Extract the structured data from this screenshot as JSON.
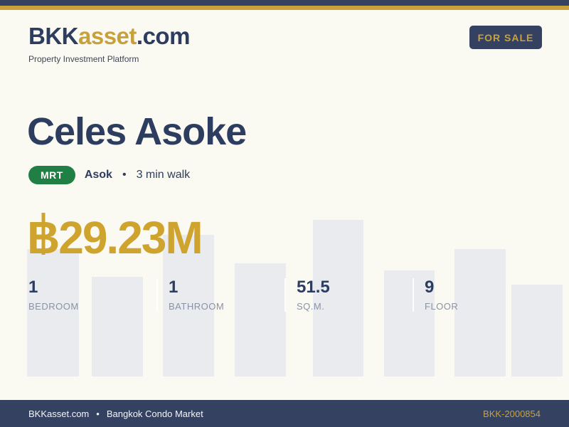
{
  "theme": {
    "navy": "#354161",
    "text_navy": "#2D3D5F",
    "gold": "#C7A23B",
    "price_gold": "#CEA42F",
    "cream": "#FAF9F2",
    "bar_gray": "#E9EBEE",
    "label_gray": "#8A92A3",
    "green": "#1F7F44",
    "tagline_gray": "#3F4757",
    "footer_text": "#F4F5F7"
  },
  "header": {
    "logo": {
      "part1": "BKK",
      "part2": "asset",
      "part3": ".com"
    },
    "tagline": "Property Investment Platform",
    "badge": "FOR SALE"
  },
  "listing": {
    "title": "Celes Asoke",
    "transit": {
      "badge": "MRT",
      "station": "Asok",
      "bullet": "•",
      "walk": "3 min walk"
    },
    "price": "฿29.23M",
    "price_parts": {
      "currency_base": "B",
      "amount": "29.23M"
    },
    "stats": [
      {
        "value": "1",
        "label": "BEDROOM"
      },
      {
        "value": "1",
        "label": "BATHROOM"
      },
      {
        "value": "51.5",
        "label": "SQ.M."
      },
      {
        "value": "9",
        "label": "FLOOR"
      }
    ]
  },
  "footer": {
    "brand": "BKKasset.com",
    "bullet": "•",
    "tagline": "Bangkok Condo Market",
    "listing_id": "BKK-2000854"
  }
}
